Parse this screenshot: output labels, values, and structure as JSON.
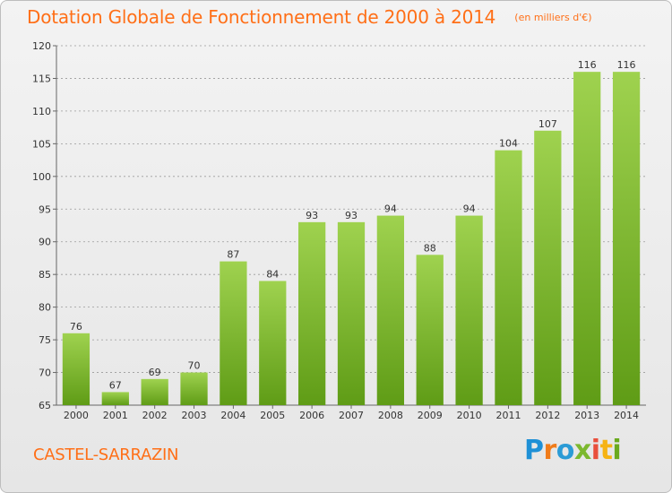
{
  "header": {
    "title": "Dotation Globale de Fonctionnement de 2000 à 2014",
    "subtitle": "(en milliers d'€)"
  },
  "footer": {
    "place": "CASTEL-SARRAZIN",
    "brand": "Proxiti",
    "brand_colors": [
      "#1e90d6",
      "#f07c1a",
      "#2b9bd6",
      "#7cb82f",
      "#e94f3c",
      "#f6b313",
      "#6aaa1e"
    ]
  },
  "colors": {
    "accent": "#ff6f17",
    "bar_top": "#9fd24f",
    "bar_bottom": "#5f9c16",
    "grid": "#9a9a9a"
  },
  "chart_data": {
    "type": "bar",
    "categories": [
      "2000",
      "2001",
      "2002",
      "2003",
      "2004",
      "2005",
      "2006",
      "2007",
      "2008",
      "2009",
      "2010",
      "2011",
      "2012",
      "2013",
      "2014"
    ],
    "values": [
      76,
      67,
      69,
      70,
      87,
      84,
      93,
      93,
      94,
      88,
      94,
      104,
      107,
      116,
      116
    ],
    "ylim": [
      65,
      120
    ],
    "yticks": [
      65,
      70,
      75,
      80,
      85,
      90,
      95,
      100,
      105,
      110,
      115,
      120
    ],
    "grid": "horizontal dashed",
    "data_labels": true
  }
}
